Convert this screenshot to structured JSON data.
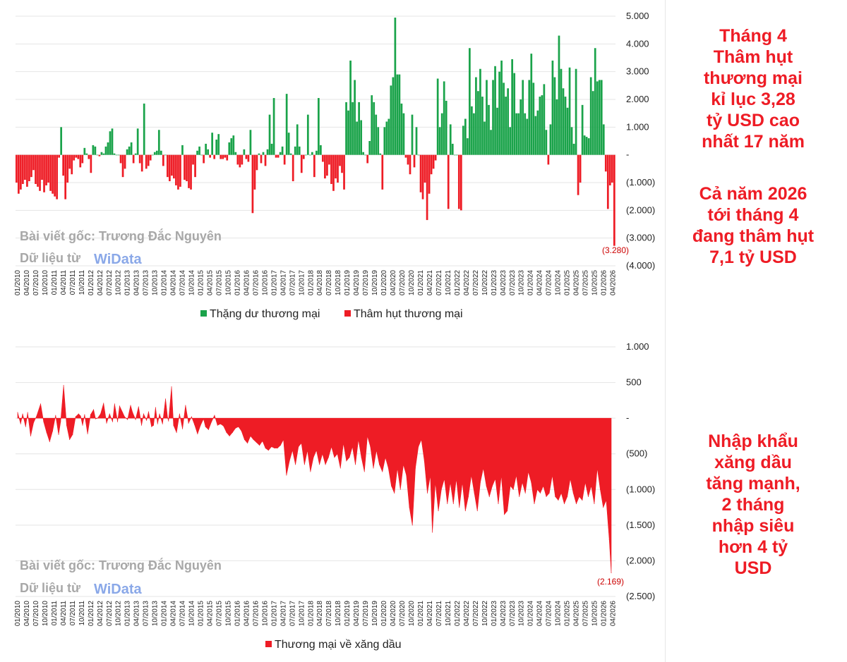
{
  "colors": {
    "surplus": "#1aa34a",
    "deficit": "#ee1c25",
    "text": "#222222",
    "watermark": "#a8a8a8",
    "logo": "#8aa8e8"
  },
  "watermark": {
    "line1": "Bài viết gốc: Trương Đắc Nguyên",
    "line2": "Dữ liệu từ",
    "logo": "WiData"
  },
  "side_notes": {
    "note1": [
      "Tháng 4",
      "Thâm hụt",
      "thương mại",
      "kỉ lục 3,28",
      "tỷ USD cao",
      "nhất 17 năm"
    ],
    "note2": [
      "Cả năm 2026",
      "tới tháng 4",
      "đang thâm hụt",
      "7,1 tỷ USD"
    ],
    "note3": [
      "Nhập khẩu",
      "xăng dầu",
      "tăng mạnh,",
      "2 tháng",
      "nhập siêu",
      "hơn 4 tỷ",
      "USD"
    ]
  },
  "chart_data": [
    {
      "type": "bar",
      "legend": [
        "Thặng dư thương mại",
        "Thâm hụt thương mại"
      ],
      "ylim": [
        -4000,
        5000
      ],
      "yticks": [
        "5.000",
        "4.000",
        "3.000",
        "2.000",
        "1.000",
        "-",
        "(1.000)",
        "(2.000)",
        "(3.000)",
        "(4.000)"
      ],
      "xticks": [
        "01/2010",
        "04/2010",
        "07/2010",
        "10/2010",
        "01/2011",
        "04/2011",
        "07/2011",
        "10/2011",
        "01/2012",
        "04/2012",
        "07/2012",
        "10/2012",
        "01/2013",
        "04/2013",
        "07/2013",
        "10/2013",
        "01/2014",
        "04/2014",
        "07/2014",
        "10/2014",
        "01/2015",
        "04/2015",
        "07/2015",
        "10/2015",
        "01/2016",
        "04/2016",
        "07/2016",
        "10/2016",
        "01/2017",
        "04/2017",
        "07/2017",
        "10/2017",
        "01/2018",
        "04/2018",
        "07/2018",
        "10/2018",
        "01/2019",
        "04/2019",
        "07/2019",
        "10/2019",
        "01/2020",
        "04/2020",
        "07/2020",
        "10/2020",
        "01/2021",
        "04/2021",
        "07/2021",
        "10/2021",
        "01/2022",
        "04/2022",
        "07/2022",
        "10/2022",
        "01/2023",
        "04/2023",
        "07/2023",
        "10/2023",
        "01/2024",
        "04/2024",
        "07/2024",
        "10/2024",
        "01/2025",
        "04/2025",
        "07/2025",
        "10/2025",
        "01/2026",
        "04/2026"
      ],
      "annotation": "(3.280)",
      "values": [
        -1000,
        -1400,
        -1250,
        -1050,
        -900,
        -1150,
        -950,
        -800,
        -550,
        -1050,
        -1150,
        -1300,
        -900,
        -1350,
        -1100,
        -1000,
        -1300,
        -1400,
        -1500,
        -1600,
        -100,
        1000,
        -750,
        -1600,
        -1000,
        -500,
        -700,
        -200,
        -100,
        -150,
        -450,
        -300,
        250,
        50,
        -150,
        -650,
        350,
        300,
        0,
        -50,
        100,
        50,
        300,
        450,
        850,
        950,
        50,
        0,
        0,
        -300,
        -800,
        -500,
        200,
        300,
        450,
        -300,
        50,
        950,
        -300,
        -600,
        1850,
        -500,
        -400,
        -200,
        0,
        100,
        150,
        900,
        150,
        -400,
        0,
        -800,
        -950,
        -750,
        -850,
        -1100,
        -1250,
        -1150,
        350,
        -900,
        -950,
        -1200,
        -1250,
        -350,
        -800,
        150,
        300,
        0,
        -300,
        400,
        200,
        -100,
        800,
        -150,
        550,
        750,
        -150,
        -150,
        -100,
        -200,
        450,
        600,
        700,
        100,
        -350,
        -450,
        -350,
        200,
        -150,
        -250,
        900,
        -2100,
        -1250,
        -550,
        50,
        -300,
        100,
        -400,
        200,
        1450,
        400,
        2050,
        -100,
        -100,
        100,
        300,
        -350,
        2200,
        800,
        50,
        -950,
        300,
        1100,
        300,
        -650,
        -150,
        0,
        1450,
        0,
        100,
        -800,
        150,
        2050,
        350,
        -250,
        -850,
        -750,
        -350,
        -1050,
        -1300,
        -850,
        -1000,
        -400,
        -650,
        -1250,
        1900,
        1600,
        3400,
        1900,
        2700,
        1200,
        1900,
        1250,
        100,
        0,
        -300,
        500,
        2150,
        1900,
        1450,
        1000,
        50,
        -1250,
        1000,
        1200,
        1300,
        2500,
        2800,
        4950,
        2900,
        2900,
        1850,
        1500,
        -100,
        -350,
        -700,
        1450,
        -450,
        1000,
        0,
        -1350,
        -1600,
        -1000,
        -2350,
        -1400,
        -700,
        -500,
        -200,
        2750,
        1000,
        1500,
        2650,
        1950,
        -1950,
        1100,
        400,
        0,
        0,
        -1950,
        -2000,
        1050,
        1300,
        600,
        3850,
        1750,
        1500,
        2800,
        2300,
        3100,
        2100,
        1200,
        2700,
        1800,
        900,
        2700,
        3200,
        1700,
        3000,
        3400,
        2600,
        2100,
        2400,
        1000,
        3450,
        2950,
        1500,
        1500,
        2000,
        2700,
        1500,
        1300,
        2700,
        3650,
        2600,
        1400,
        1600,
        2100,
        2150,
        2550,
        900,
        -350,
        1100,
        3400,
        2800,
        2000,
        4300,
        3100,
        2400,
        2100,
        1700,
        3150,
        1000,
        400,
        3100,
        -1450,
        -1000,
        1800,
        700,
        650,
        600,
        2800,
        2300,
        3850,
        2650,
        2700,
        2700,
        1100,
        -600,
        -1950,
        -1100,
        -1000,
        -3280
      ]
    },
    {
      "type": "area",
      "legend": [
        "Thương mại về xăng dầu"
      ],
      "ylim": [
        -2500,
        1000
      ],
      "yticks": [
        "1.000",
        "500",
        "-",
        "(500)",
        "(1.000)",
        "(1.500)",
        "(2.000)",
        "(2.500)"
      ],
      "xticks": [
        "01/2010",
        "04/2010",
        "07/2010",
        "10/2010",
        "01/2011",
        "04/2011",
        "07/2011",
        "10/2011",
        "01/2012",
        "04/2012",
        "07/2012",
        "10/2012",
        "01/2013",
        "04/2013",
        "07/2013",
        "10/2013",
        "01/2014",
        "04/2014",
        "07/2014",
        "10/2014",
        "01/2015",
        "04/2015",
        "07/2015",
        "10/2015",
        "01/2016",
        "04/2016",
        "07/2016",
        "10/2016",
        "01/2017",
        "04/2017",
        "07/2017",
        "10/2017",
        "01/2018",
        "04/2018",
        "07/2018",
        "10/2018",
        "01/2019",
        "04/2019",
        "07/2019",
        "10/2019",
        "01/2020",
        "04/2020",
        "07/2020",
        "10/2020",
        "01/2021",
        "04/2021",
        "07/2021",
        "10/2021",
        "01/2022",
        "04/2022",
        "07/2022",
        "10/2022",
        "01/2023",
        "04/2023",
        "07/2023",
        "10/2023",
        "01/2024",
        "04/2024",
        "07/2024",
        "10/2024",
        "01/2025",
        "04/2025",
        "07/2025",
        "10/2025",
        "01/2026",
        "04/2026"
      ],
      "annotation": "(2.169)",
      "points": [
        [
          0,
          80
        ],
        [
          3,
          -80
        ],
        [
          5,
          60
        ],
        [
          8,
          -120
        ],
        [
          10,
          80
        ],
        [
          13,
          -250
        ],
        [
          16,
          -60
        ],
        [
          19,
          30
        ],
        [
          23,
          200
        ],
        [
          26,
          -50
        ],
        [
          29,
          -200
        ],
        [
          32,
          -330
        ],
        [
          35,
          -180
        ],
        [
          38,
          40
        ],
        [
          41,
          -230
        ],
        [
          43,
          -50
        ],
        [
          46,
          460
        ],
        [
          49,
          -100
        ],
        [
          52,
          -300
        ],
        [
          55,
          -230
        ],
        [
          58,
          20
        ],
        [
          61,
          60
        ],
        [
          63,
          30
        ],
        [
          65,
          -100
        ],
        [
          67,
          50
        ],
        [
          70,
          -220
        ],
        [
          73,
          50
        ],
        [
          76,
          120
        ],
        [
          78,
          -10
        ],
        [
          80,
          0
        ],
        [
          83,
          60
        ],
        [
          86,
          210
        ],
        [
          89,
          -70
        ],
        [
          92,
          60
        ],
        [
          95,
          -50
        ],
        [
          97,
          200
        ],
        [
          100,
          -50
        ],
        [
          102,
          170
        ],
        [
          105,
          80
        ],
        [
          107,
          20
        ],
        [
          110,
          -20
        ],
        [
          113,
          180
        ],
        [
          115,
          80
        ],
        [
          118,
          -20
        ],
        [
          121,
          160
        ],
        [
          124,
          -100
        ],
        [
          126,
          60
        ],
        [
          129,
          -30
        ],
        [
          131,
          90
        ],
        [
          134,
          -120
        ],
        [
          136,
          -100
        ],
        [
          138,
          150
        ],
        [
          140,
          -80
        ],
        [
          142,
          60
        ],
        [
          145,
          -80
        ],
        [
          148,
          270
        ],
        [
          150,
          10
        ],
        [
          151,
          -40
        ],
        [
          154,
          440
        ],
        [
          156,
          -100
        ],
        [
          159,
          -200
        ],
        [
          162,
          60
        ],
        [
          165,
          -150
        ],
        [
          168,
          180
        ],
        [
          171,
          -70
        ],
        [
          174,
          20
        ],
        [
          177,
          -90
        ],
        [
          180,
          -220
        ],
        [
          183,
          -100
        ],
        [
          186,
          -10
        ],
        [
          188,
          -120
        ],
        [
          191,
          -160
        ],
        [
          194,
          -50
        ],
        [
          197,
          40
        ],
        [
          200,
          -100
        ],
        [
          203,
          -80
        ],
        [
          206,
          -110
        ],
        [
          209,
          -200
        ],
        [
          212,
          -250
        ],
        [
          215,
          -200
        ],
        [
          218,
          -140
        ],
        [
          221,
          -120
        ],
        [
          224,
          -180
        ],
        [
          227,
          -300
        ],
        [
          230,
          -350
        ],
        [
          233,
          -250
        ],
        [
          236,
          -300
        ],
        [
          239,
          -340
        ],
        [
          242,
          -380
        ],
        [
          245,
          -320
        ],
        [
          248,
          -420
        ],
        [
          251,
          -450
        ],
        [
          254,
          -400
        ],
        [
          257,
          -420
        ],
        [
          260,
          -420
        ],
        [
          263,
          -380
        ],
        [
          266,
          -300
        ],
        [
          269,
          -800
        ],
        [
          272,
          -600
        ],
        [
          275,
          -450
        ],
        [
          278,
          -650
        ],
        [
          281,
          -400
        ],
        [
          284,
          -350
        ],
        [
          287,
          -650
        ],
        [
          290,
          -450
        ],
        [
          293,
          -750
        ],
        [
          296,
          -550
        ],
        [
          299,
          -450
        ],
        [
          302,
          -650
        ],
        [
          305,
          -500
        ],
        [
          308,
          -650
        ],
        [
          311,
          -550
        ],
        [
          314,
          -400
        ],
        [
          317,
          -550
        ],
        [
          320,
          -500
        ],
        [
          323,
          -700
        ],
        [
          326,
          -350
        ],
        [
          329,
          -600
        ],
        [
          332,
          -550
        ],
        [
          335,
          -400
        ],
        [
          338,
          -650
        ],
        [
          341,
          -300
        ],
        [
          344,
          -550
        ],
        [
          347,
          -750
        ],
        [
          350,
          -250
        ],
        [
          353,
          -400
        ],
        [
          356,
          -700
        ],
        [
          359,
          -450
        ],
        [
          362,
          -650
        ],
        [
          365,
          -750
        ],
        [
          368,
          -550
        ],
        [
          371,
          -700
        ],
        [
          374,
          -950
        ],
        [
          377,
          -1050
        ],
        [
          380,
          -700
        ],
        [
          383,
          -1000
        ],
        [
          386,
          -650
        ],
        [
          389,
          -800
        ],
        [
          392,
          -1250
        ],
        [
          395,
          -1500
        ],
        [
          398,
          -700
        ],
        [
          401,
          -400
        ],
        [
          404,
          -300
        ],
        [
          407,
          -600
        ],
        [
          410,
          -1050
        ],
        [
          413,
          -800
        ],
        [
          415,
          -1600
        ],
        [
          418,
          -900
        ],
        [
          421,
          -1300
        ],
        [
          424,
          -1000
        ],
        [
          427,
          -850
        ],
        [
          430,
          -1200
        ],
        [
          433,
          -900
        ],
        [
          436,
          -1200
        ],
        [
          439,
          -850
        ],
        [
          442,
          -1250
        ],
        [
          445,
          -900
        ],
        [
          448,
          -1300
        ],
        [
          451,
          -1100
        ],
        [
          454,
          -800
        ],
        [
          457,
          -1050
        ],
        [
          460,
          -1300
        ],
        [
          463,
          -900
        ],
        [
          466,
          -700
        ],
        [
          469,
          -950
        ],
        [
          472,
          -1100
        ],
        [
          475,
          -950
        ],
        [
          478,
          -850
        ],
        [
          481,
          -1200
        ],
        [
          484,
          -800
        ],
        [
          487,
          -1350
        ],
        [
          490,
          -1300
        ],
        [
          493,
          -950
        ],
        [
          496,
          -1000
        ],
        [
          499,
          -800
        ],
        [
          502,
          -1100
        ],
        [
          505,
          -900
        ],
        [
          508,
          -1050
        ],
        [
          511,
          -750
        ],
        [
          514,
          -900
        ],
        [
          517,
          -1200
        ],
        [
          520,
          -1000
        ],
        [
          523,
          -1050
        ],
        [
          526,
          -950
        ],
        [
          529,
          -1100
        ],
        [
          532,
          -1050
        ],
        [
          535,
          -800
        ],
        [
          538,
          -1100
        ],
        [
          541,
          -1150
        ],
        [
          544,
          -1050
        ],
        [
          547,
          -1200
        ],
        [
          550,
          -1100
        ],
        [
          553,
          -850
        ],
        [
          556,
          -1050
        ],
        [
          559,
          -1200
        ],
        [
          562,
          -1100
        ],
        [
          565,
          -1150
        ],
        [
          568,
          -900
        ],
        [
          571,
          -1100
        ],
        [
          574,
          -950
        ],
        [
          577,
          -1200
        ],
        [
          580,
          -700
        ],
        [
          583,
          -1000
        ],
        [
          586,
          -1250
        ],
        [
          589,
          -1150
        ],
        [
          592,
          -1700
        ],
        [
          594,
          -2169
        ]
      ]
    }
  ]
}
